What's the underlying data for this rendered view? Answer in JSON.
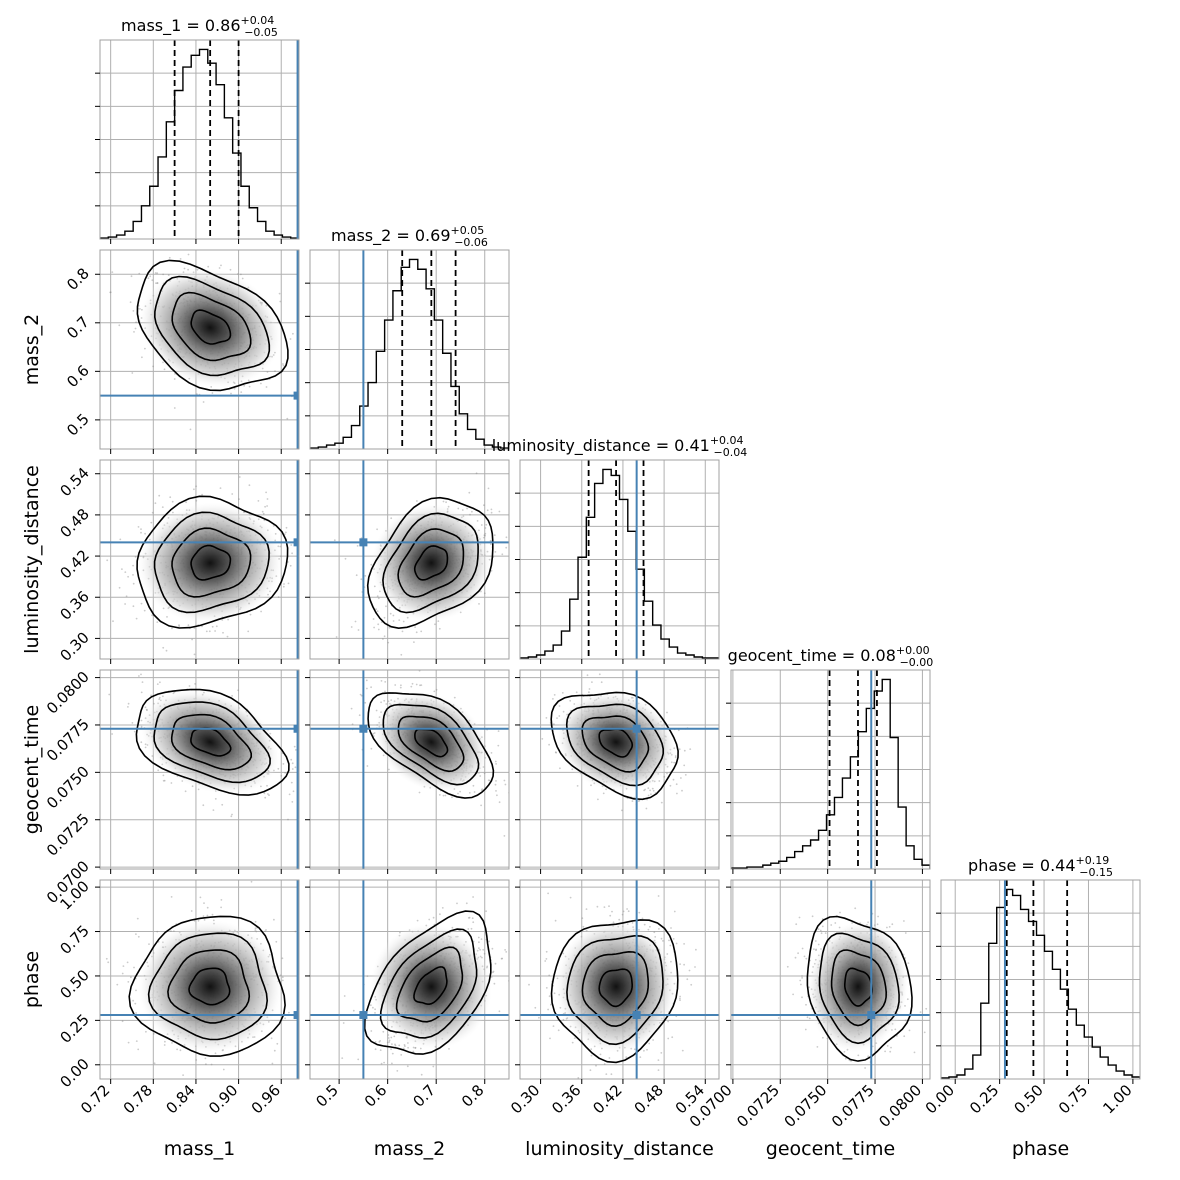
{
  "chart_data": {
    "type": "corner",
    "parameters": [
      {
        "name": "mass_1",
        "label": "mass_1",
        "range": [
          0.705,
          0.985
        ],
        "ticks": [
          0.72,
          0.78,
          0.84,
          0.9,
          0.96
        ],
        "tick_labels": [
          "0.72",
          "0.78",
          "0.84",
          "0.90",
          "0.96"
        ],
        "median": 0.86,
        "q_lo": 0.81,
        "q_hi": 0.9,
        "truth": 0.983,
        "title_value": "0.86",
        "title_plus": "+0.04",
        "title_minus": "−0.05",
        "sigma": 0.046
      },
      {
        "name": "mass_2",
        "label": "mass_2",
        "range": [
          0.44,
          0.85
        ],
        "ticks": [
          0.5,
          0.6,
          0.7,
          0.8
        ],
        "tick_labels": [
          "0.5",
          "0.6",
          "0.7",
          "0.8"
        ],
        "median": 0.69,
        "q_lo": 0.63,
        "q_hi": 0.74,
        "truth": 0.55,
        "title_value": "0.69",
        "title_plus": "+0.05",
        "title_minus": "−0.06",
        "sigma": 0.056
      },
      {
        "name": "luminosity_distance",
        "label": "luminosity_distance",
        "range": [
          0.27,
          0.56
        ],
        "ticks": [
          0.3,
          0.36,
          0.42,
          0.48,
          0.54
        ],
        "tick_labels": [
          "0.30",
          "0.36",
          "0.42",
          "0.48",
          "0.54"
        ],
        "median": 0.41,
        "q_lo": 0.37,
        "q_hi": 0.45,
        "truth": 0.44,
        "title_value": "0.41",
        "title_plus": "+0.04",
        "title_minus": "−0.04",
        "sigma": 0.04
      },
      {
        "name": "geocent_time",
        "label": "geocent_time",
        "range": [
          0.0699,
          0.0804
        ],
        "ticks": [
          0.07,
          0.0725,
          0.075,
          0.0775,
          0.08
        ],
        "tick_labels": [
          "0.0700",
          "0.0725",
          "0.0750",
          "0.0775",
          "0.0800"
        ],
        "median": 0.0766,
        "q_lo": 0.0751,
        "q_hi": 0.0776,
        "truth": 0.0773,
        "title_value": "0.08",
        "title_plus": "+0.00",
        "title_minus": "−0.00",
        "sigma": 0.0012
      },
      {
        "name": "phase",
        "label": "phase",
        "range": [
          -0.08,
          1.04
        ],
        "ticks": [
          0.0,
          0.25,
          0.5,
          0.75,
          1.0
        ],
        "tick_labels": [
          "0.00",
          "0.25",
          "0.50",
          "0.75",
          "1.00"
        ],
        "median": 0.44,
        "q_lo": 0.29,
        "q_hi": 0.63,
        "truth": 0.28,
        "title_value": "0.44",
        "title_plus": "+0.19",
        "title_minus": "−0.15",
        "sigma": 0.17
      }
    ],
    "histograms": [
      [
        0.5,
        1,
        2,
        4,
        9,
        17,
        27,
        42,
        60,
        76,
        88,
        94,
        97,
        90,
        79,
        62,
        44,
        27,
        16,
        9,
        4,
        2,
        1,
        0.5
      ],
      [
        0.5,
        1,
        2,
        3,
        6,
        12,
        22,
        34,
        50,
        66,
        81,
        93,
        97,
        92,
        82,
        66,
        49,
        32,
        18,
        10,
        5,
        2,
        1,
        0.5
      ],
      [
        0.5,
        1,
        2,
        4,
        7,
        14,
        30,
        51,
        71,
        88,
        95,
        92,
        80,
        64,
        45,
        29,
        17,
        10,
        6,
        3,
        2,
        1,
        0.5,
        0.5
      ],
      [
        0.5,
        0.5,
        1,
        1,
        2,
        3,
        4,
        6,
        9,
        12,
        15,
        20,
        28,
        37,
        47,
        58,
        71,
        83,
        92,
        98,
        68,
        32,
        12,
        5,
        2
      ],
      [
        0.5,
        1,
        2,
        5,
        12,
        38,
        68,
        86,
        95,
        92,
        85,
        79,
        72,
        64,
        55,
        45,
        35,
        27,
        21,
        16,
        11,
        7,
        4,
        2,
        1
      ]
    ],
    "correlations": [
      [
        1,
        -0.35,
        0.1,
        -0.4,
        0.0
      ],
      [
        -0.35,
        1,
        0.35,
        -0.55,
        0.45
      ],
      [
        0.1,
        0.35,
        1,
        -0.3,
        0.1
      ],
      [
        -0.4,
        -0.55,
        -0.3,
        1,
        -0.15
      ],
      [
        0.0,
        0.45,
        0.1,
        -0.15,
        1
      ]
    ],
    "truth_color": "#4682b4",
    "contour_color": "#000000",
    "grid": true,
    "quantile_line_style": "dashed"
  }
}
